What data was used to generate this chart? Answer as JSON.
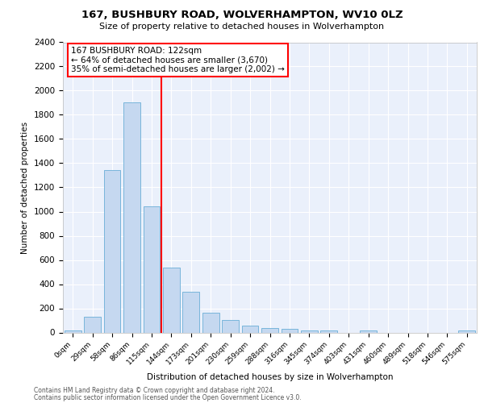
{
  "title1": "167, BUSHBURY ROAD, WOLVERHAMPTON, WV10 0LZ",
  "title2": "Size of property relative to detached houses in Wolverhampton",
  "xlabel": "Distribution of detached houses by size in Wolverhampton",
  "ylabel": "Number of detached properties",
  "bar_labels": [
    "0sqm",
    "29sqm",
    "58sqm",
    "86sqm",
    "115sqm",
    "144sqm",
    "173sqm",
    "201sqm",
    "230sqm",
    "259sqm",
    "288sqm",
    "316sqm",
    "345sqm",
    "374sqm",
    "403sqm",
    "431sqm",
    "460sqm",
    "489sqm",
    "518sqm",
    "546sqm",
    "575sqm"
  ],
  "bar_values": [
    20,
    130,
    1340,
    1900,
    1045,
    540,
    340,
    165,
    105,
    55,
    35,
    30,
    20,
    15,
    0,
    20,
    0,
    0,
    0,
    0,
    20
  ],
  "bar_color": "#c5d8f0",
  "bar_edge_color": "#6aaed6",
  "vline_x_index": 4,
  "vline_color": "red",
  "annotation_text": "167 BUSHBURY ROAD: 122sqm\n← 64% of detached houses are smaller (3,670)\n35% of semi-detached houses are larger (2,002) →",
  "ylim": [
    0,
    2400
  ],
  "yticks": [
    0,
    200,
    400,
    600,
    800,
    1000,
    1200,
    1400,
    1600,
    1800,
    2000,
    2200,
    2400
  ],
  "footer1": "Contains HM Land Registry data © Crown copyright and database right 2024.",
  "footer2": "Contains public sector information licensed under the Open Government Licence v3.0.",
  "bg_color": "#eaf0fb",
  "grid_color": "white"
}
